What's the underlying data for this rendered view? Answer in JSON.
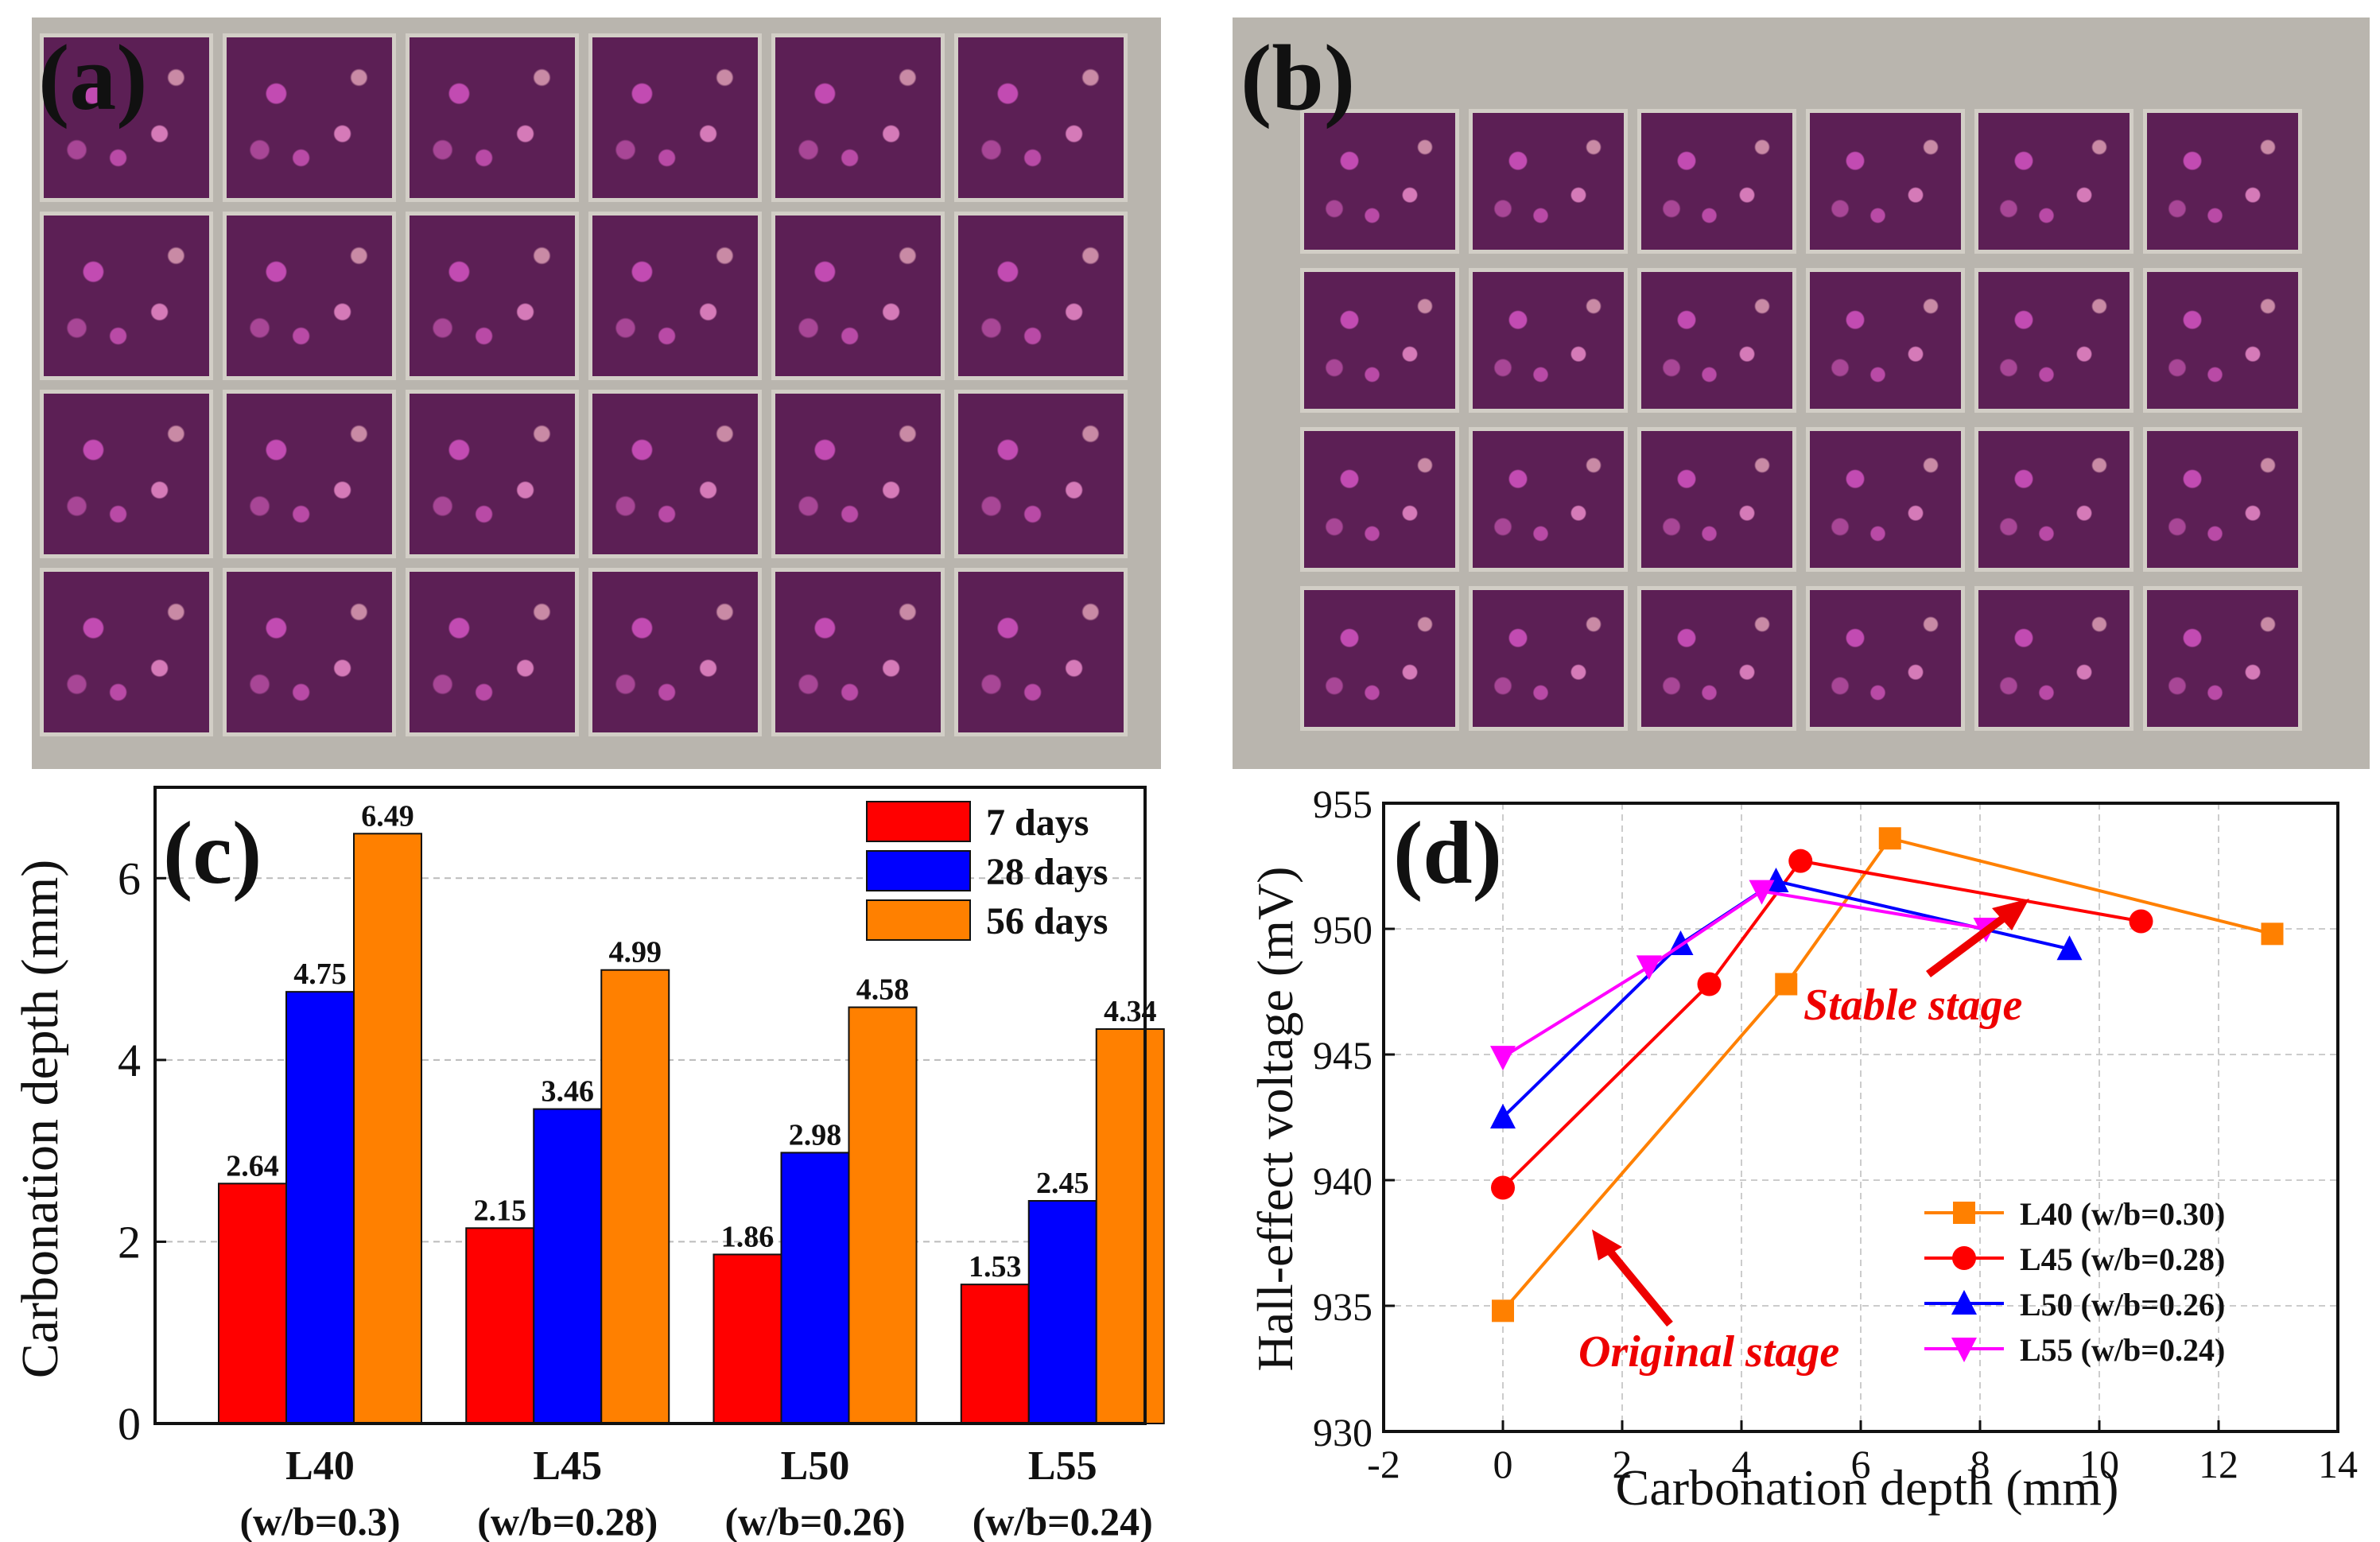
{
  "panel_labels": {
    "a": "(a)",
    "b": "(b)",
    "c": "(c)",
    "d": "(d)"
  },
  "colors": {
    "day7": "#ff0000",
    "day28": "#0000ff",
    "day56": "#ff8000",
    "L40": "#ff8000",
    "L45": "#ff0000",
    "L50": "#0000ff",
    "L55": "#ff00ff",
    "annotation": "#ee0000"
  },
  "chart_data": [
    {
      "type": "bar",
      "ylabel": "Carbonation depth (mm)",
      "ylim": [
        0,
        7
      ],
      "yticks": [
        "0",
        "2",
        "4",
        "6"
      ],
      "categories": [
        {
          "name": "L40",
          "sub": "(w/b=0.3)"
        },
        {
          "name": "L45",
          "sub": "(w/b=0.28)"
        },
        {
          "name": "L50",
          "sub": "(w/b=0.26)"
        },
        {
          "name": "L55",
          "sub": "(w/b=0.24)"
        }
      ],
      "series": [
        {
          "name": "7 days",
          "values": [
            2.64,
            2.15,
            1.86,
            1.53
          ],
          "labels": [
            "2.64",
            "2.15",
            "1.86",
            "1.53"
          ]
        },
        {
          "name": "28 days",
          "values": [
            4.75,
            3.46,
            2.98,
            2.45
          ],
          "labels": [
            "4.75",
            "3.46",
            "2.98",
            "2.45"
          ]
        },
        {
          "name": "56 days",
          "values": [
            6.49,
            4.99,
            4.58,
            4.34
          ],
          "labels": [
            "6.49",
            "4.99",
            "4.58",
            "4.34"
          ]
        }
      ],
      "grid": true,
      "legend": "top-right"
    },
    {
      "type": "line",
      "xlabel": "Carbonation depth (mm)",
      "ylabel": "Hall-effect voltage (mV)",
      "xlim": [
        -2,
        14
      ],
      "ylim": [
        930,
        955
      ],
      "xticks": [
        "-2",
        "0",
        "2",
        "4",
        "6",
        "8",
        "10",
        "12",
        "14"
      ],
      "yticks": [
        "930",
        "935",
        "940",
        "945",
        "950",
        "955"
      ],
      "series": [
        {
          "name": "L40 (w/b=0.30)",
          "marker": "square",
          "points": [
            [
              0,
              934.8
            ],
            [
              4.75,
              947.8
            ],
            [
              6.49,
              953.6
            ],
            [
              12.9,
              949.8
            ]
          ]
        },
        {
          "name": "L45 (w/b=0.28)",
          "marker": "circle",
          "points": [
            [
              0,
              939.7
            ],
            [
              3.46,
              947.8
            ],
            [
              4.99,
              952.7
            ],
            [
              10.7,
              950.3
            ]
          ]
        },
        {
          "name": "L50 (w/b=0.26)",
          "marker": "triangle-up",
          "points": [
            [
              0,
              942.5
            ],
            [
              2.98,
              949.4
            ],
            [
              4.58,
              951.9
            ],
            [
              9.5,
              949.2
            ]
          ]
        },
        {
          "name": "L55 (w/b=0.24)",
          "marker": "triangle-down",
          "points": [
            [
              0,
              944.9
            ],
            [
              2.45,
              948.5
            ],
            [
              4.34,
              951.5
            ],
            [
              8.1,
              950.0
            ]
          ]
        }
      ],
      "annotations": [
        "Stable stage",
        "Original stage"
      ],
      "grid": true,
      "legend": "bottom-right"
    }
  ]
}
